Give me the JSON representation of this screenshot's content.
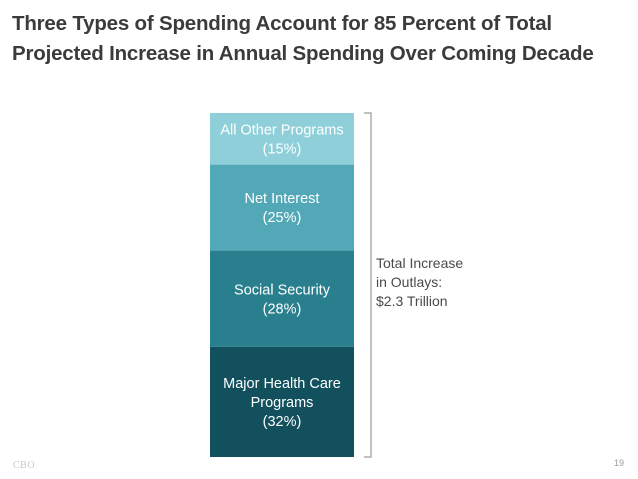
{
  "title": {
    "line1": "Three Types of Spending Account for 85 Percent of Total",
    "line2": "Projected Increase in Annual Spending Over Coming Decade"
  },
  "chart_data": {
    "type": "bar",
    "stacked": true,
    "title": "Three Types of Spending Account for 85 Percent of Total Projected Increase in Annual Spending Over Coming Decade",
    "unit": "percent of total increase",
    "categories": [
      "Total Increase in Outlays"
    ],
    "series": [
      {
        "name": "Major Health Care Programs",
        "label_lines": [
          "Major Health Care",
          "Programs"
        ],
        "pct_label": "(32%)",
        "value": 32,
        "color": "#12505e"
      },
      {
        "name": "Social Security",
        "label_lines": [
          "Social Security"
        ],
        "pct_label": "(28%)",
        "value": 28,
        "color": "#2a7f8e"
      },
      {
        "name": "Net Interest",
        "label_lines": [
          "Net Interest"
        ],
        "pct_label": "(25%)",
        "value": 25,
        "color": "#52a8b6"
      },
      {
        "name": "All Other Programs",
        "label_lines": [
          "All Other Programs"
        ],
        "pct_label": "(15%)",
        "value": 15,
        "color": "#8ecfd9"
      }
    ],
    "annotation": [
      "Total Increase",
      "in Outlays:",
      "$2.3 Trillion"
    ]
  },
  "footer": {
    "source": "CBO",
    "page": "19"
  }
}
